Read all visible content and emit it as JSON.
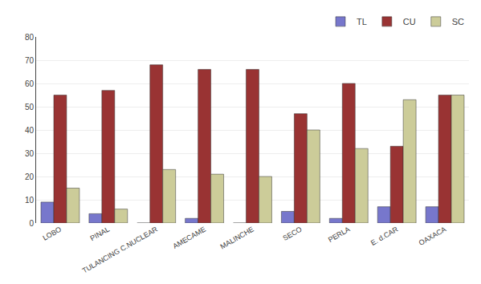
{
  "chart_data": {
    "type": "bar",
    "categories": [
      "LOBO",
      "PINAL",
      "TULANCING C.NUCLEAR",
      "AMECAME",
      "MALINCHE",
      "SECO",
      "PERLA",
      "E. d.CAR",
      "OAXACA"
    ],
    "series": [
      {
        "name": "TL",
        "color": "#7777cc",
        "values": [
          9,
          4,
          0,
          2,
          0,
          5,
          2,
          7,
          7
        ]
      },
      {
        "name": "CU",
        "color": "#993333",
        "values": [
          55,
          57,
          68,
          66,
          66,
          47,
          60,
          33,
          55
        ]
      },
      {
        "name": "SC",
        "color": "#cccc99",
        "values": [
          15,
          6,
          23,
          21,
          20,
          40,
          32,
          53,
          55
        ]
      }
    ],
    "ylim": [
      0,
      80
    ],
    "yticks": [
      0,
      10,
      20,
      30,
      40,
      50,
      60,
      70,
      80
    ],
    "grid": true,
    "legend": "upper right"
  }
}
